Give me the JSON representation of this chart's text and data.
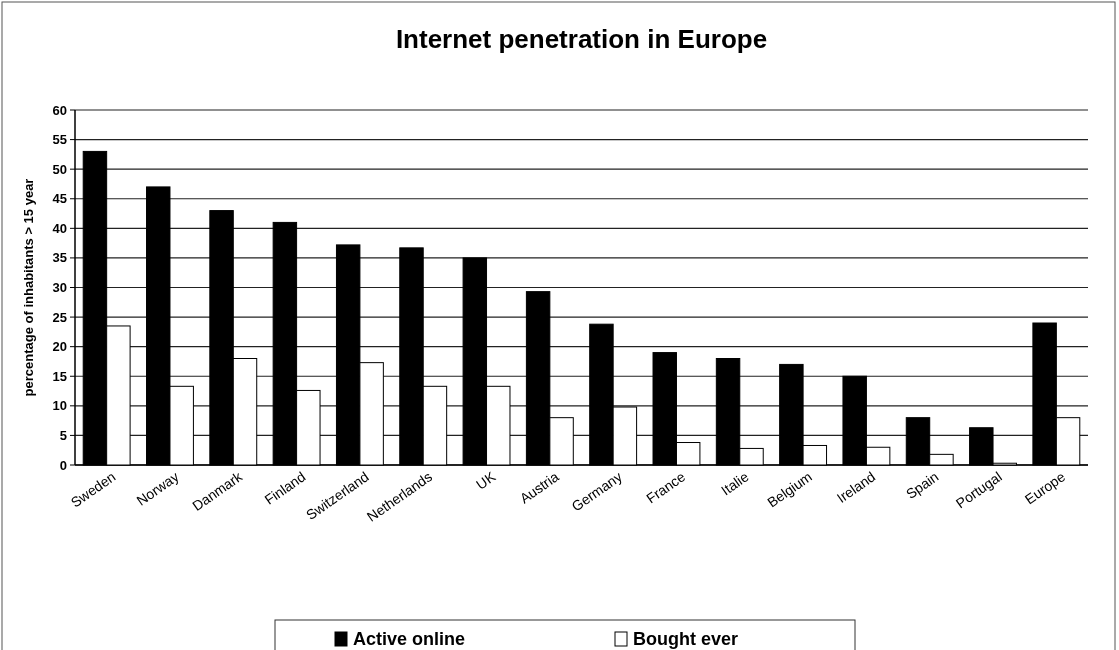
{
  "chart_data": {
    "type": "bar",
    "title": "Internet penetration in Europe",
    "ylabel": "percentage of inhabitants > 15 year",
    "categories": [
      "Sweden",
      "Norway",
      "Danmark",
      "Finland",
      "Switzerland",
      "Netherlands",
      "UK",
      "Austria",
      "Germany",
      "France",
      "Italie",
      "Belgium",
      "Ireland",
      "Spain",
      "Portugal",
      "Europe"
    ],
    "series": [
      {
        "name": "Active online",
        "color": "#000000",
        "values": [
          53,
          47,
          43,
          41,
          37.2,
          36.7,
          35,
          29.3,
          23.8,
          19,
          18,
          17,
          15,
          8,
          6.3,
          24
        ]
      },
      {
        "name": "Bought ever",
        "color": "#ffffff",
        "values": [
          23.5,
          13.3,
          18,
          12.6,
          17.3,
          13.3,
          13.3,
          8,
          9.8,
          3.8,
          2.8,
          3.3,
          3,
          1.8,
          0.3,
          8
        ]
      }
    ],
    "ylim": [
      0,
      60
    ],
    "yticks": [
      0,
      5,
      10,
      15,
      20,
      25,
      30,
      35,
      40,
      45,
      50,
      55,
      60
    ],
    "grid": "y",
    "legend": "bottom"
  }
}
